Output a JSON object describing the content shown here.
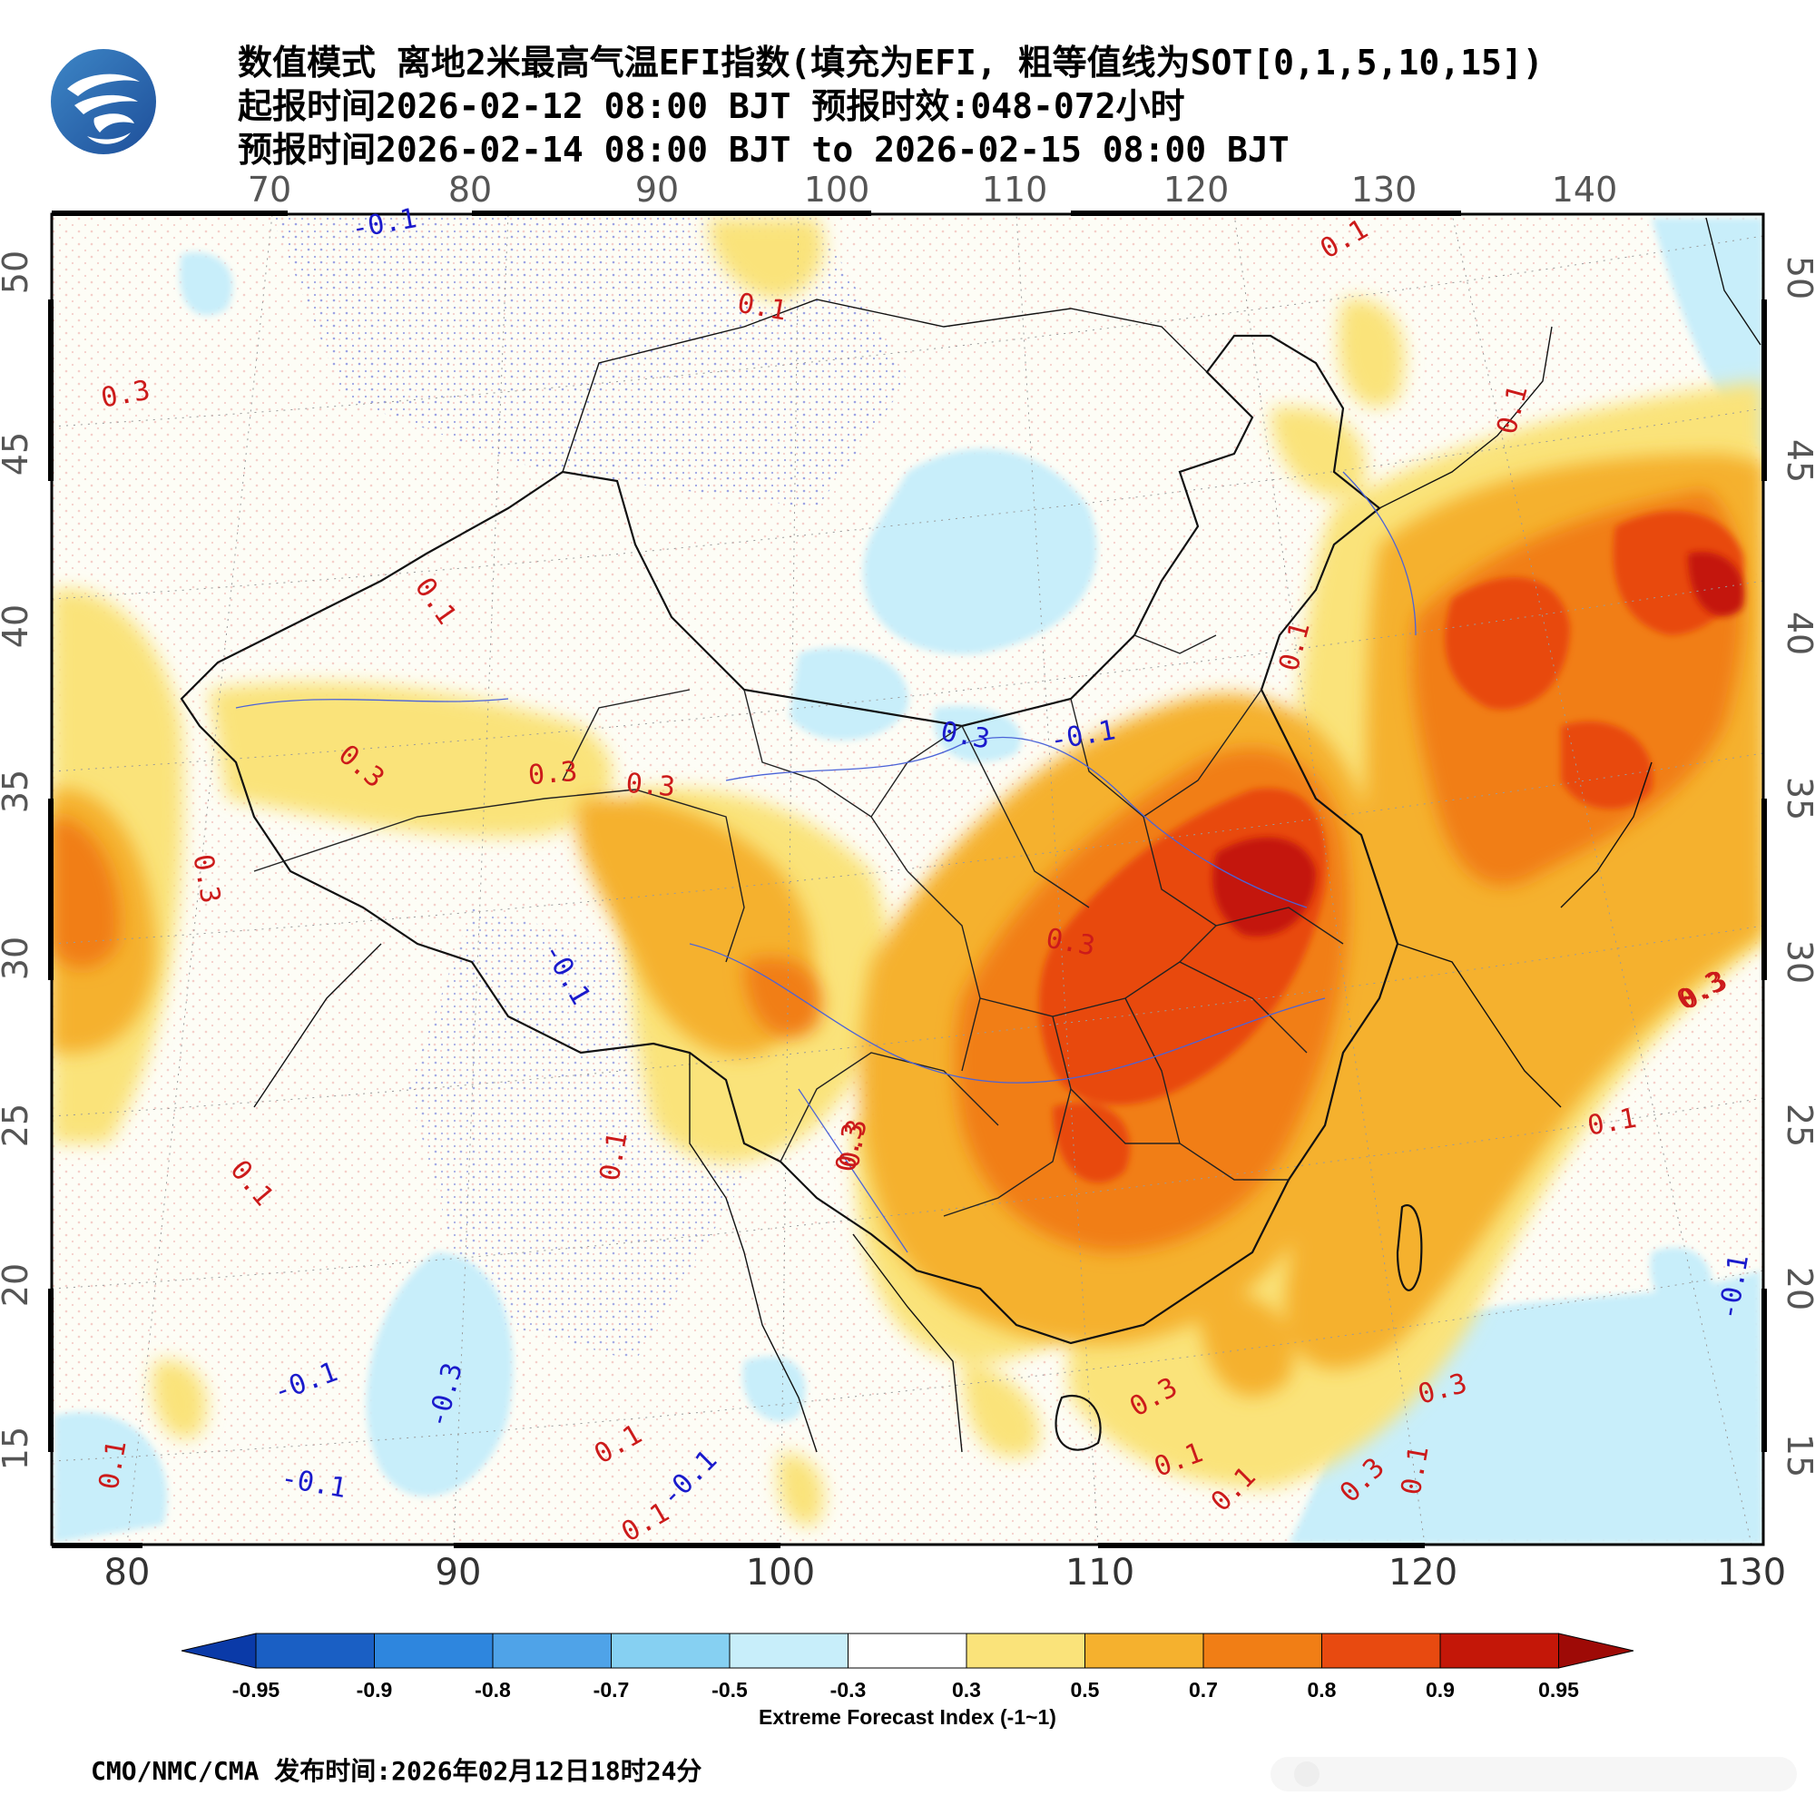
{
  "title": {
    "line1": "数值模式 离地2米最高气温EFI指数(填充为EFI, 粗等值线为SOT[0,1,5,10,15])",
    "line2": "起报时间2026-02-12 08:00 BJT 预报时效:048-072小时",
    "line3": "预报时间2026-02-14 08:00 BJT to 2026-02-15 08:00 BJT"
  },
  "top_longitudes": [
    "70",
    "80",
    "90",
    "100",
    "110",
    "120",
    "130",
    "140"
  ],
  "bottom_longitudes": [
    "80",
    "90",
    "100",
    "110",
    "120",
    "130"
  ],
  "latitudes": [
    "50",
    "45",
    "40",
    "35",
    "30",
    "25",
    "20",
    "15"
  ],
  "contour_labels": [
    {
      "text": "-0.1",
      "color": "#1a1acc"
    },
    {
      "text": "0.1",
      "color": "#cc1a1a"
    },
    {
      "text": "0.3",
      "color": "#cc1a1a"
    },
    {
      "text": "0.1",
      "color": "#cc1a1a"
    },
    {
      "text": "0.1",
      "color": "#cc1a1a"
    },
    {
      "text": "0.1",
      "color": "#cc1a1a"
    },
    {
      "text": "0.3",
      "color": "#cc1a1a"
    },
    {
      "text": "0.3",
      "color": "#cc1a1a"
    },
    {
      "text": "0.3",
      "color": "#cc1a1a"
    },
    {
      "text": "0.3",
      "color": "#cc1a1a"
    },
    {
      "text": "0.3",
      "color": "#1a1acc"
    },
    {
      "text": "-0.1",
      "color": "#1a1acc"
    },
    {
      "text": "-0.1",
      "color": "#1a1acc"
    },
    {
      "text": "0.1",
      "color": "#cc1a1a"
    },
    {
      "text": "0.3",
      "color": "#cc1a1a"
    },
    {
      "text": "0.3",
      "color": "#cc1a1a"
    },
    {
      "text": "0.1",
      "color": "#cc1a1a"
    },
    {
      "text": "0.1",
      "color": "#cc1a1a"
    },
    {
      "text": "-0.1",
      "color": "#1a1acc"
    },
    {
      "text": "-0.3",
      "color": "#1a1acc"
    },
    {
      "text": "-0.1",
      "color": "#1a1acc"
    },
    {
      "text": "0.1",
      "color": "#cc1a1a"
    },
    {
      "text": "-0.1",
      "color": "#1a1acc"
    },
    {
      "text": "0.1",
      "color": "#cc1a1a"
    },
    {
      "text": "0.3",
      "color": "#cc1a1a"
    },
    {
      "text": "0.1",
      "color": "#cc1a1a"
    },
    {
      "text": "0.1",
      "color": "#cc1a1a"
    },
    {
      "text": "0.3",
      "color": "#cc1a1a"
    },
    {
      "text": "0.3",
      "color": "#cc1a1a"
    },
    {
      "text": "0.1",
      "color": "#cc1a1a"
    },
    {
      "text": "0.3",
      "color": "#cc1a1a"
    },
    {
      "text": "0.1",
      "color": "#cc1a1a"
    },
    {
      "text": "-0.1",
      "color": "#1a1acc"
    },
    {
      "text": "0.3",
      "color": "#cc1a1a"
    },
    {
      "text": "0.3",
      "color": "#cc1a1a"
    },
    {
      "text": "0.1",
      "color": "#cc1a1a"
    }
  ],
  "colorbar": {
    "ticks": [
      "-0.95",
      "-0.9",
      "-0.8",
      "-0.7",
      "-0.5",
      "-0.3",
      "0.3",
      "0.5",
      "0.7",
      "0.8",
      "0.9",
      "0.95"
    ],
    "colors": [
      "#1a5fc4",
      "#2e86de",
      "#4fa3e8",
      "#86d0f2",
      "#c8eefa",
      "#ffffff",
      "#fae37a",
      "#f5b12e",
      "#f17e15",
      "#e84a10",
      "#c41708"
    ],
    "end_low": "#0a3aa8",
    "end_high": "#9e0a06",
    "label": "Extreme Forecast Index (-1~1)"
  },
  "footer": {
    "credit": "CMO/NMC/CMA 发布时间:2026年02月12日18时24分"
  }
}
